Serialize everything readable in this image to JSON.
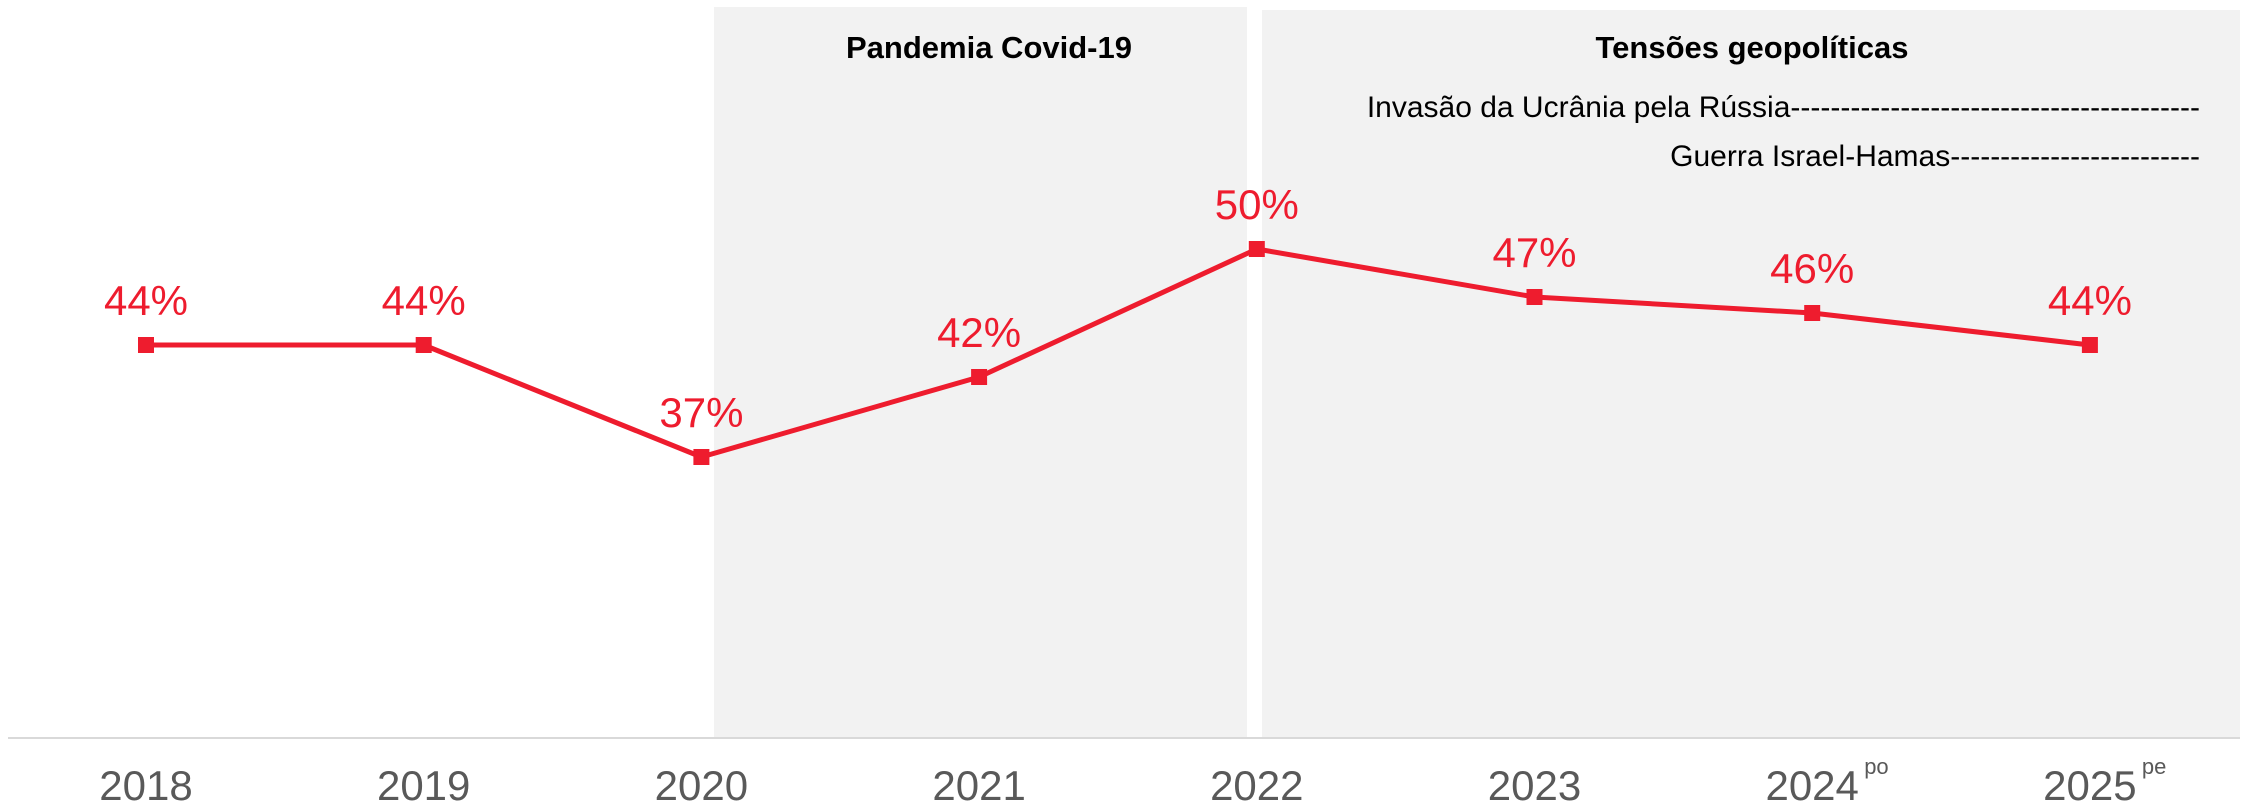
{
  "chart_data": {
    "type": "line",
    "title": "",
    "xlabel": "",
    "ylabel": "",
    "categories": [
      "2018",
      "2019",
      "2020",
      "2021",
      "2022",
      "2023",
      "2024",
      "2025"
    ],
    "category_superscripts": [
      "",
      "",
      "",
      "",
      "",
      "",
      "po",
      "pe"
    ],
    "series": [
      {
        "values": [
          44,
          44,
          37,
          42,
          50,
          47,
          46,
          44
        ],
        "labels": [
          "44%",
          "44%",
          "37%",
          "42%",
          "50%",
          "47%",
          "46%",
          "44%"
        ],
        "color": "#ee1c2e"
      }
    ],
    "ylim": [
      0,
      70
    ],
    "grid": false,
    "bands": [
      {
        "title": "Pandemia Covid-19",
        "from": "2020",
        "to": "2022"
      },
      {
        "title": "Tensões geopolíticas",
        "from": "2022",
        "to": "2025",
        "events": [
          "Invasão da Ucrânia pela Rússia-----------------------------------------",
          "Guerra Israel-Hamas-------------------------"
        ]
      }
    ],
    "colors": {
      "line": "#ee1c2e",
      "band": "#f2f2f2",
      "axis": "#d9d9d9",
      "tick": "#595959"
    }
  }
}
